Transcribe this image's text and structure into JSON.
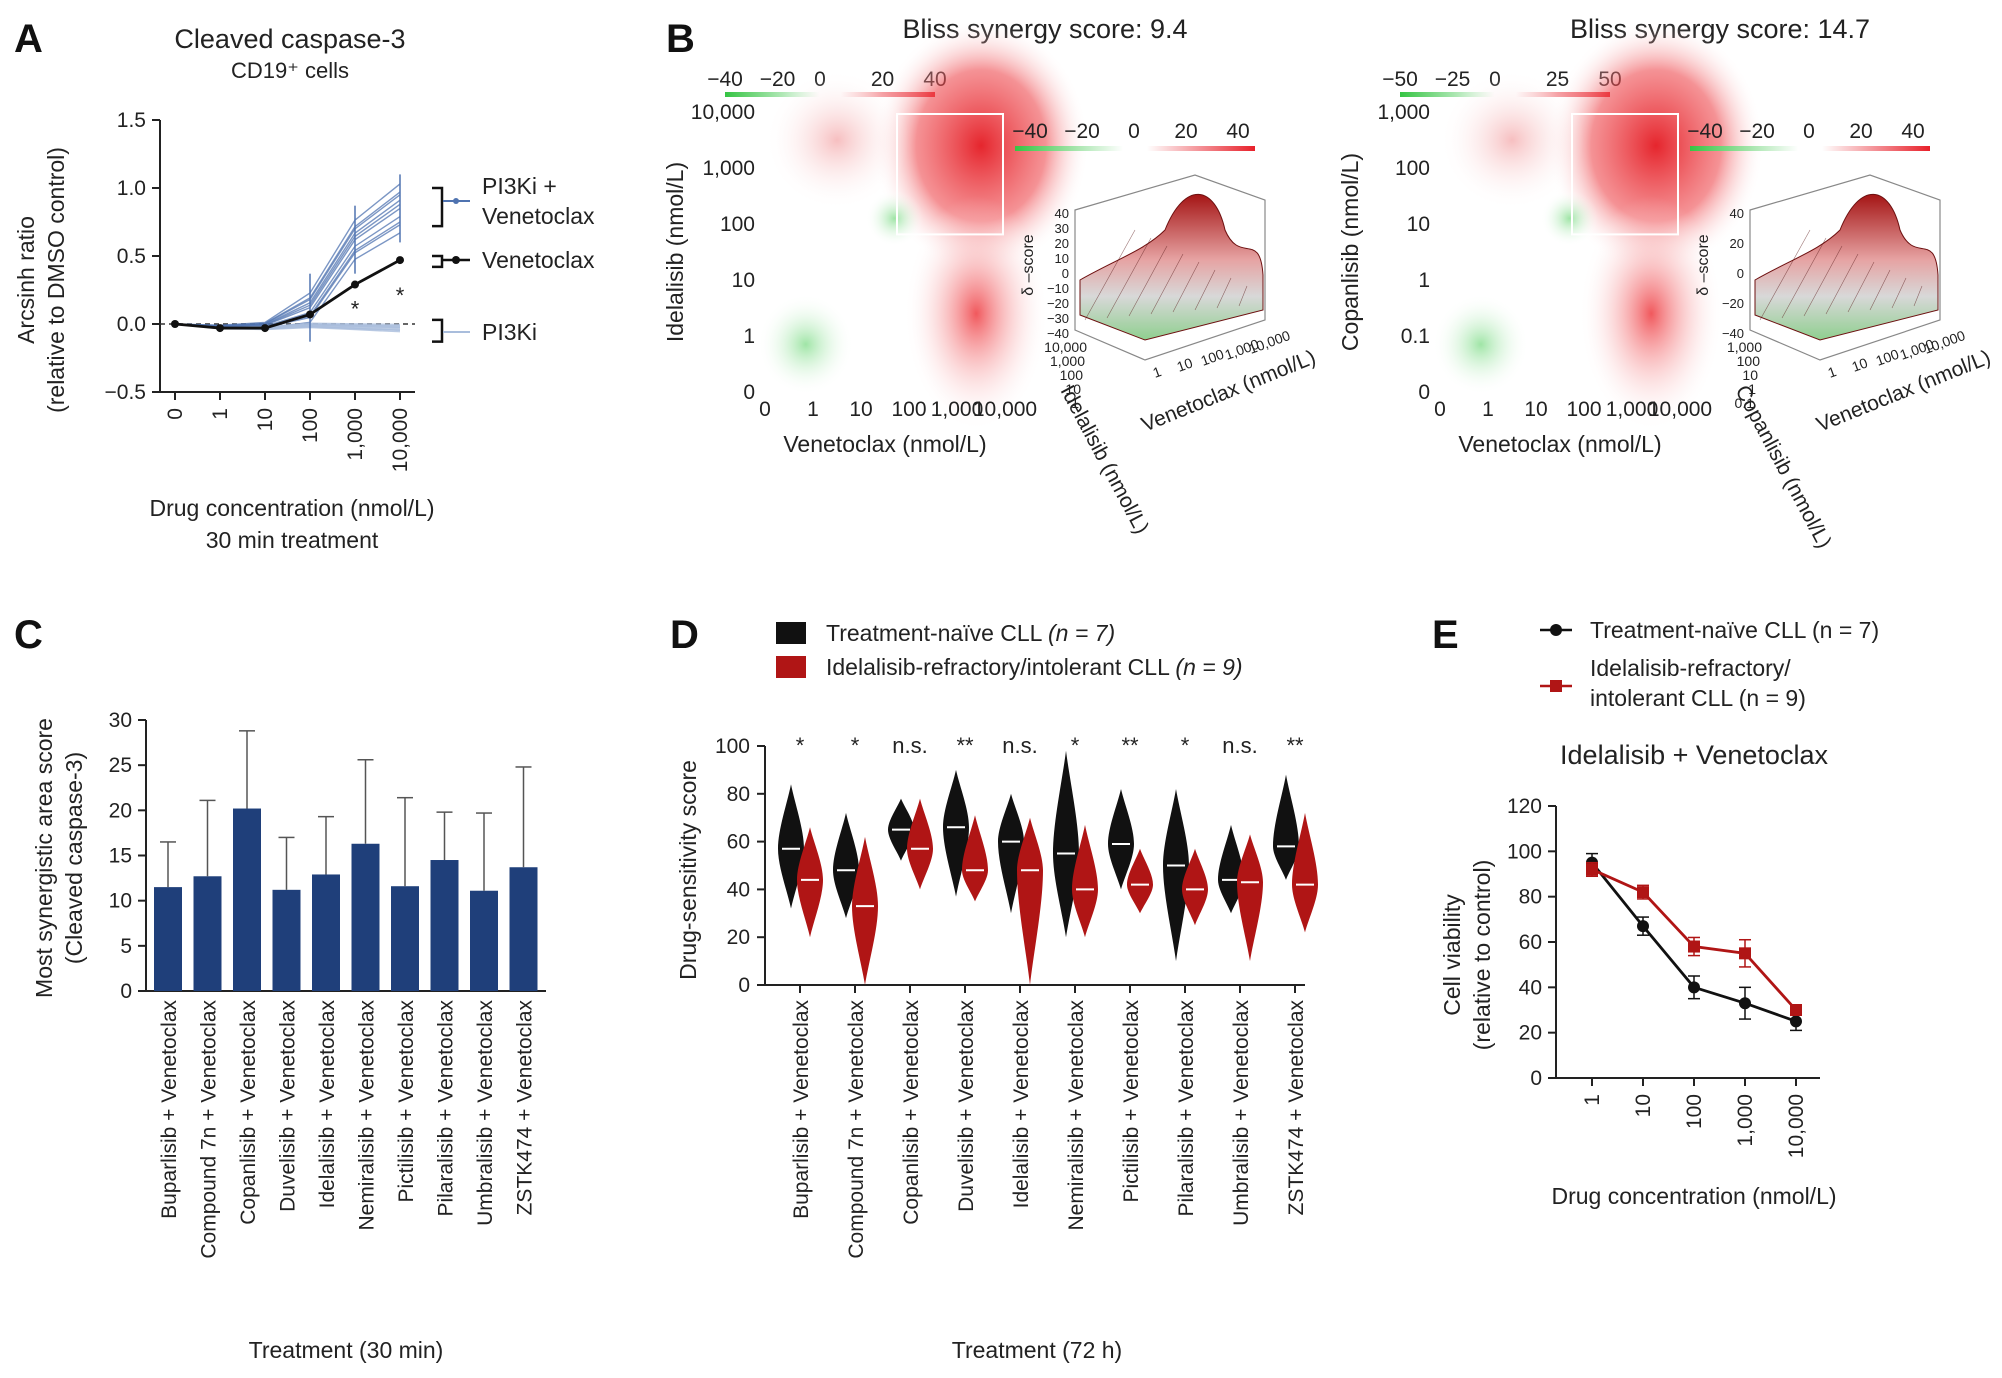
{
  "panels": {
    "A": "A",
    "B": "B",
    "C": "C",
    "D": "D",
    "E": "E"
  },
  "colors": {
    "pi3k_combo": "#4f73b0",
    "pi3ki": "#a9bddc",
    "venetoclax": "#111111",
    "bar": "#1f3f7a",
    "naive": "#111111",
    "refractory": "#b01515",
    "heat_pos": "#e8202a",
    "heat_neg": "#35c443"
  },
  "chart_data": [
    {
      "id": "A",
      "type": "line",
      "title": "Cleaved caspase-3",
      "subtitle": "CD19⁺ cells",
      "xlabel": "Drug concentration (nmol/L)",
      "xlabel2": "30 min treatment",
      "ylabel": "Arcsinh ratio",
      "ylabel2": "(relative to DMSO control)",
      "categories": [
        "0",
        "1",
        "10",
        "100",
        "1,000",
        "10,000"
      ],
      "yticks": [
        "1.5",
        "1.0",
        "0.5",
        "0.0",
        "−0.5"
      ],
      "ylim": [
        -0.5,
        1.5
      ],
      "series": [
        {
          "name": "PI3Ki + Venetoclax",
          "label_line1": "PI3Ki +",
          "label_line2": "Venetoclax",
          "values": [
            0.0,
            -0.02,
            -0.01,
            0.12,
            0.62,
            0.85
          ]
        },
        {
          "name": "Venetoclax",
          "values": [
            0.0,
            -0.03,
            -0.03,
            0.07,
            0.29,
            0.47
          ]
        },
        {
          "name": "PI3Ki",
          "values": [
            0.0,
            -0.03,
            -0.03,
            -0.01,
            -0.02,
            -0.03
          ]
        }
      ],
      "significance": [
        "*",
        "*"
      ]
    },
    {
      "id": "B1",
      "type": "heatmap",
      "title": "Bliss synergy score: 9.4",
      "xlabel": "Venetoclax (nmol/L)",
      "ylabel": "Idelalisib (nmol/L)",
      "xticks": [
        "0",
        "1",
        "10",
        "100",
        "1,000",
        "10,000"
      ],
      "yticks": [
        "10,000",
        "1,000",
        "100",
        "10",
        "1",
        "0"
      ],
      "colorbar": [
        "−40",
        "−20",
        "0",
        "20",
        "40"
      ],
      "surface_colorbar": [
        "−40",
        "−20",
        "0",
        "20",
        "40"
      ],
      "surface_zlabel": "δ –score",
      "surface_zticks": [
        "40",
        "30",
        "20",
        "10",
        "0",
        "−10",
        "−20",
        "−30",
        "−40"
      ],
      "surface_ylabel": "Idelalisib (nmol/L)",
      "surface_xlabel": "Venetoclax (nmol/L)",
      "surface_yticks": [
        "10,000",
        "1,000",
        "100",
        "10",
        "1"
      ],
      "surface_xticks": [
        "1",
        "10",
        "100",
        "1,000",
        "10,000"
      ]
    },
    {
      "id": "B2",
      "type": "heatmap",
      "title": "Bliss synergy score: 14.7",
      "xlabel": "Venetoclax (nmol/L)",
      "ylabel": "Copanlisib (nmol/L)",
      "xticks": [
        "0",
        "1",
        "10",
        "100",
        "1,000",
        "10,000"
      ],
      "yticks": [
        "1,000",
        "100",
        "10",
        "1",
        "0.1",
        "0"
      ],
      "colorbar": [
        "−50",
        "−25",
        "0",
        "25",
        "50"
      ],
      "surface_colorbar": [
        "−40",
        "−20",
        "0",
        "20",
        "40"
      ],
      "surface_zlabel": "δ –score",
      "surface_zticks": [
        "40",
        "20",
        "0",
        "−20",
        "−40"
      ],
      "surface_ylabel": "Copanlisib (nmol/L)",
      "surface_xlabel": "Venetoclax (nmol/L)",
      "surface_yticks": [
        "1,000",
        "100",
        "10",
        "1",
        "0.1"
      ],
      "surface_xticks": [
        "1",
        "10",
        "100",
        "1,000",
        "10,000"
      ]
    },
    {
      "id": "C",
      "type": "bar",
      "ylabel": "Most synergistic area score",
      "ylabel2": "(Cleaved caspase-3)",
      "xlabel": "Treatment (30 min)",
      "ylim": [
        0,
        30
      ],
      "yticks": [
        "30",
        "25",
        "20",
        "15",
        "10",
        "5",
        "0"
      ],
      "categories": [
        "Buparlisib + Venetoclax",
        "Compound 7n + Venetoclax",
        "Copanlisib + Venetoclax",
        "Duvelisib + Venetoclax",
        "Idelalisib + Venetoclax",
        "Nemiralisib + Venetoclax",
        "Pictilisib + Venetoclax",
        "Pilaralisib + Venetoclax",
        "Umbralisib + Venetoclax",
        "ZSTK474 + Venetoclax"
      ],
      "values": [
        11.5,
        12.7,
        20.2,
        11.2,
        12.9,
        16.3,
        11.6,
        14.5,
        11.1,
        13.7
      ],
      "errors": [
        5.0,
        8.4,
        8.6,
        5.8,
        6.4,
        9.3,
        9.8,
        5.3,
        8.6,
        11.1
      ]
    },
    {
      "id": "D",
      "type": "violin",
      "ylabel": "Drug-sensitivity score",
      "xlabel": "Treatment (72 h)",
      "ylim": [
        0,
        100
      ],
      "yticks": [
        "100",
        "80",
        "60",
        "40",
        "20",
        "0"
      ],
      "legend": [
        {
          "name": "Treatment-naïve CLL",
          "n": "(n = 7)"
        },
        {
          "name": "Idelalisib-refractory/intolerant CLL",
          "n": "(n = 9)"
        }
      ],
      "categories": [
        "Buparlisib + Venetoclax",
        "Compound 7n + Venetoclax",
        "Copanlisib + Venetoclax",
        "Duvelisib + Venetoclax",
        "Idelalisib + Venetoclax",
        "Nemiralisib + Venetoclax",
        "Pictilisib + Venetoclax",
        "Pilaralisib + Venetoclax",
        "Umbralisib + Venetoclax",
        "ZSTK474 + Venetoclax"
      ],
      "significance": [
        "*",
        "*",
        "n.s.",
        "**",
        "n.s.",
        "*",
        "**",
        "*",
        "n.s.",
        "**"
      ],
      "naive_median": [
        57,
        48,
        65,
        66,
        60,
        55,
        59,
        50,
        44,
        58
      ],
      "refractory_median": [
        44,
        33,
        57,
        48,
        48,
        40,
        42,
        40,
        43,
        42
      ],
      "naive_range": [
        [
          32,
          84
        ],
        [
          28,
          72
        ],
        [
          52,
          78
        ],
        [
          37,
          90
        ],
        [
          30,
          80
        ],
        [
          20,
          98
        ],
        [
          40,
          82
        ],
        [
          10,
          82
        ],
        [
          30,
          67
        ],
        [
          44,
          88
        ]
      ],
      "refractory_range": [
        [
          20,
          66
        ],
        [
          0,
          62
        ],
        [
          40,
          78
        ],
        [
          35,
          71
        ],
        [
          0,
          70
        ],
        [
          20,
          67
        ],
        [
          30,
          57
        ],
        [
          25,
          57
        ],
        [
          10,
          63
        ],
        [
          22,
          72
        ]
      ]
    },
    {
      "id": "E",
      "type": "line",
      "title": "Idelalisib +  Venetoclax",
      "xlabel": "Drug concentration (nmol/L)",
      "ylabel": "Cell viability",
      "ylabel2": "(relative to control)",
      "ylim": [
        0,
        120
      ],
      "yticks": [
        "120",
        "100",
        "80",
        "60",
        "40",
        "20",
        "0"
      ],
      "categories": [
        "1",
        "10",
        "100",
        "1,000",
        "10,000"
      ],
      "legend": [
        {
          "name": "Treatment-naïve CLL",
          "n": "(n = 7)"
        },
        {
          "name_line1": "Idelalisib-refractory/",
          "name_line2": "intolerant CLL",
          "n": "(n = 9)"
        }
      ],
      "series": [
        {
          "name": "Treatment-naïve CLL",
          "values": [
            95,
            67,
            40,
            33,
            25
          ],
          "errors": [
            4,
            4,
            5,
            7,
            4
          ]
        },
        {
          "name": "Idelalisib-refractory/intolerant CLL",
          "values": [
            92,
            82,
            58,
            55,
            30
          ],
          "errors": [
            3,
            3,
            4,
            6,
            2
          ]
        }
      ]
    }
  ]
}
